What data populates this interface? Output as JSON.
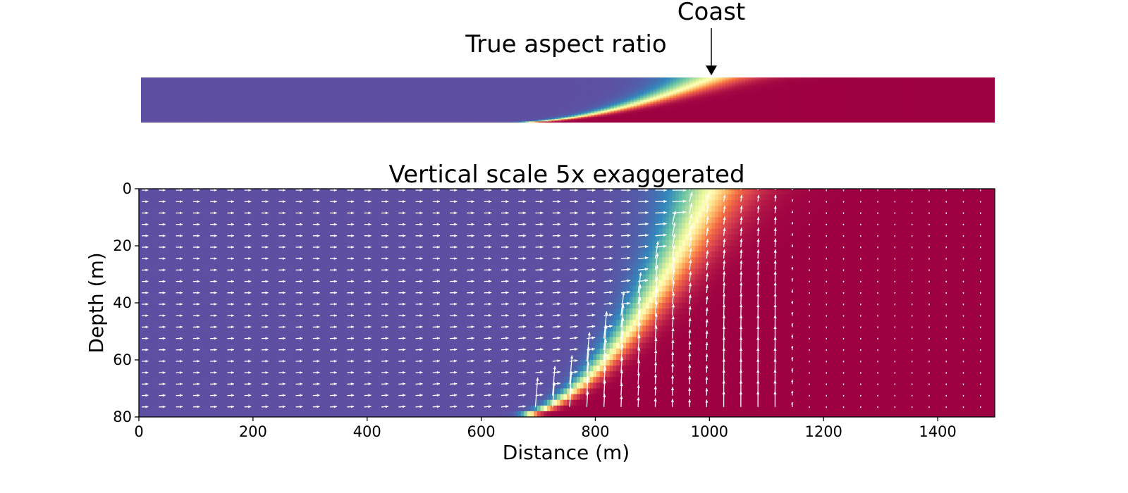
{
  "chart_data": [
    {
      "type": "contour",
      "title": "True aspect ratio",
      "annotation": {
        "text": "Coast",
        "x": 1000,
        "y": 0
      },
      "xlim": [
        0,
        1500
      ],
      "ylim": [
        80,
        0
      ],
      "aspect": "equal",
      "axes_visible": false,
      "colormap": "Spectral_r",
      "interface": {
        "toe_x_at_bottom": 655,
        "coast_x_at_top": 1005,
        "bottom_depth": 80
      }
    },
    {
      "type": "contour+quiver",
      "title": "Vertical scale 5x exaggerated",
      "xlabel": "Distance (m)",
      "ylabel": "Depth (m)",
      "xlim": [
        0,
        1500
      ],
      "ylim": [
        80,
        0
      ],
      "xticks": [
        0,
        200,
        400,
        600,
        800,
        1000,
        1200,
        1400
      ],
      "yticks": [
        0,
        20,
        40,
        60,
        80
      ],
      "colormap": "Spectral_r",
      "vertical_exaggeration": 5,
      "interface": {
        "toe_x_at_bottom": 655,
        "coast_x_at_top": 1005,
        "bottom_depth": 80
      },
      "quiver": {
        "color": "#ffffff",
        "x_spacing": 30,
        "y_spacing": 4,
        "sea_velocity_region_x_end": 1150,
        "coast_x": 1005,
        "description": "landward inflow of seawater at depth, rising and discharging near coast"
      }
    }
  ],
  "colors": {
    "fresh": "#5e4fa2",
    "salt": "#9e0142",
    "text": "#000000"
  }
}
